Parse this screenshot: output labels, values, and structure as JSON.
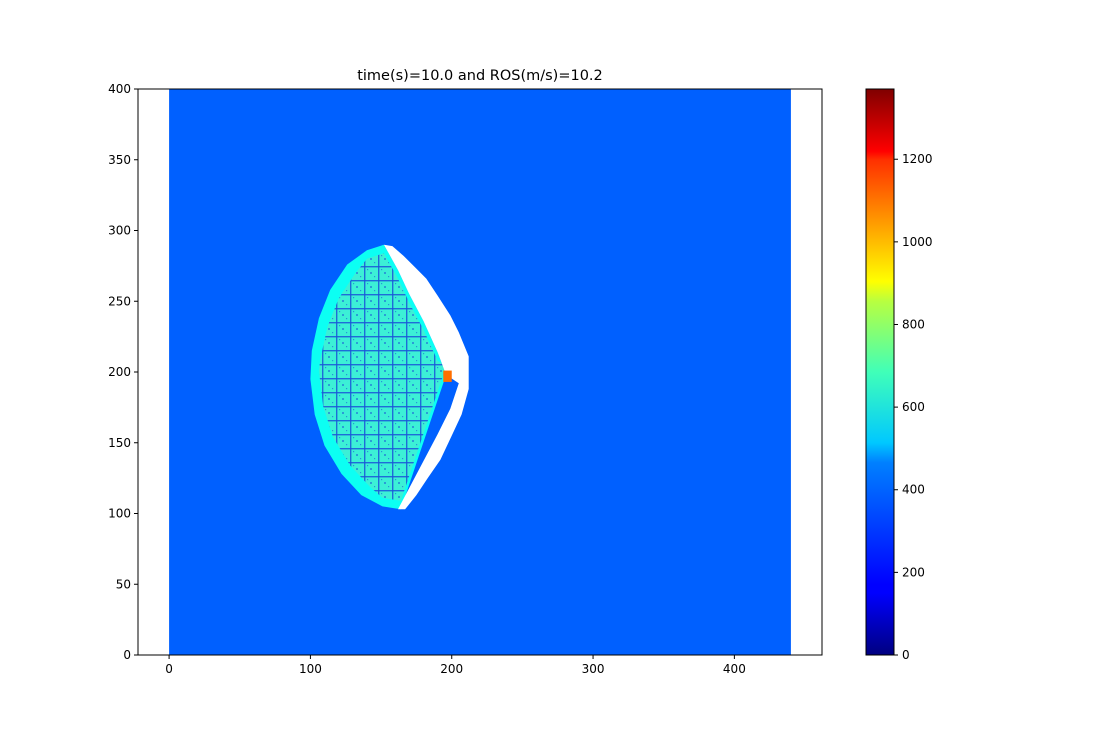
{
  "chart_data": {
    "type": "heatmap",
    "title": "time(s)=10.0  and ROS(m/s)=10.2",
    "xlabel": "",
    "ylabel": "",
    "xlim": [
      -22,
      462
    ],
    "ylim": [
      0,
      400
    ],
    "x_ticks": [
      0,
      100,
      200,
      300,
      400
    ],
    "y_ticks": [
      0,
      50,
      100,
      150,
      200,
      250,
      300,
      350,
      400
    ],
    "data_extent": {
      "x": [
        0,
        440
      ],
      "y": [
        0,
        400
      ]
    },
    "background_value": 300,
    "colorbar": {
      "colormap": "jet",
      "range": [
        0,
        1370
      ],
      "ticks": [
        0,
        200,
        400,
        600,
        800,
        1000,
        1200
      ]
    },
    "regions": [
      {
        "name": "burning-zone",
        "value": 530,
        "boundary": [
          [
            152,
            290
          ],
          [
            140,
            286
          ],
          [
            126,
            276
          ],
          [
            114,
            258
          ],
          [
            106,
            238
          ],
          [
            101,
            215
          ],
          [
            100,
            195
          ],
          [
            103,
            170
          ],
          [
            110,
            148
          ],
          [
            122,
            128
          ],
          [
            136,
            113
          ],
          [
            151,
            105
          ],
          [
            164,
            103
          ],
          [
            196,
            198
          ],
          [
            190,
            214
          ],
          [
            180,
            236
          ],
          [
            170,
            255
          ],
          [
            162,
            272
          ]
        ]
      },
      {
        "name": "burnt-front",
        "value": null,
        "boundary": [
          [
            152,
            290
          ],
          [
            158,
            289
          ],
          [
            166,
            282
          ],
          [
            174,
            274
          ],
          [
            182,
            266
          ],
          [
            190,
            254
          ],
          [
            199,
            240
          ],
          [
            205,
            228
          ],
          [
            212,
            211
          ],
          [
            212,
            188
          ],
          [
            207,
            170
          ],
          [
            200,
            155
          ],
          [
            192,
            138
          ],
          [
            183,
            125
          ],
          [
            175,
            113
          ],
          [
            167,
            103
          ],
          [
            162,
            103
          ],
          [
            190,
            156
          ],
          [
            199,
            174
          ],
          [
            205,
            192
          ],
          [
            196,
            198
          ],
          [
            190,
            214
          ],
          [
            180,
            236
          ],
          [
            170,
            255
          ],
          [
            162,
            272
          ]
        ]
      }
    ],
    "hotspot": {
      "x": [
        194,
        200
      ],
      "y": [
        193,
        201
      ],
      "value": 1050
    }
  }
}
